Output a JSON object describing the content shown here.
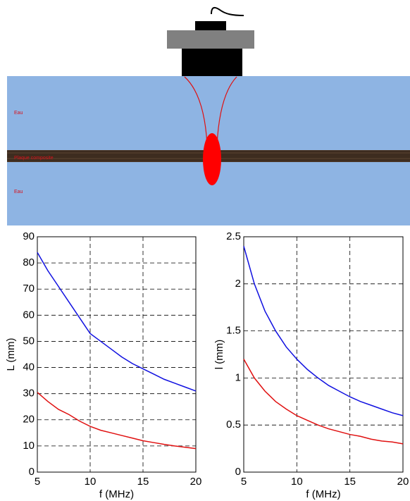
{
  "diagram": {
    "labels": [
      "Eau",
      "Plaque composite",
      "Eau"
    ]
  },
  "chart_data": [
    {
      "type": "line",
      "xlabel": "f (MHz)",
      "ylabel": "L (mm)",
      "x": [
        5,
        6,
        7,
        8,
        9,
        10,
        11,
        12,
        13,
        14,
        15,
        16,
        17,
        18,
        19,
        20
      ],
      "series": [
        {
          "color": "#1010e0",
          "values": [
            84,
            77,
            71,
            65,
            59,
            53,
            50,
            47,
            44,
            41.5,
            39.5,
            37.5,
            35.5,
            34,
            32.5,
            31
          ]
        },
        {
          "color": "#e01010",
          "values": [
            30.5,
            27,
            24,
            22,
            19.5,
            17.5,
            16,
            15,
            14,
            13,
            12,
            11.3,
            10.6,
            10,
            9.5,
            9
          ]
        }
      ],
      "xlim": [
        5,
        20
      ],
      "ylim": [
        0,
        90
      ],
      "xticks": [
        5,
        10,
        15,
        20
      ],
      "yticks": [
        0,
        10,
        20,
        30,
        40,
        50,
        60,
        70,
        80,
        90
      ],
      "grid": true
    },
    {
      "type": "line",
      "xlabel": "f (MHz)",
      "ylabel": "l (mm)",
      "x": [
        5,
        6,
        7,
        8,
        9,
        10,
        11,
        12,
        13,
        14,
        15,
        16,
        17,
        18,
        19,
        20
      ],
      "series": [
        {
          "color": "#1010e0",
          "values": [
            2.4,
            2,
            1.71,
            1.5,
            1.33,
            1.2,
            1.09,
            1,
            0.92,
            0.86,
            0.8,
            0.75,
            0.71,
            0.67,
            0.63,
            0.6
          ]
        },
        {
          "color": "#e01010",
          "values": [
            1.2,
            1,
            0.86,
            0.75,
            0.67,
            0.6,
            0.55,
            0.5,
            0.46,
            0.43,
            0.4,
            0.38,
            0.35,
            0.33,
            0.32,
            0.3
          ]
        }
      ],
      "xlim": [
        5,
        20
      ],
      "ylim": [
        0,
        2.5
      ],
      "xticks": [
        5,
        10,
        15,
        20
      ],
      "yticks": [
        0,
        0.5,
        1,
        1.5,
        2,
        2.5
      ],
      "grid": true
    }
  ]
}
